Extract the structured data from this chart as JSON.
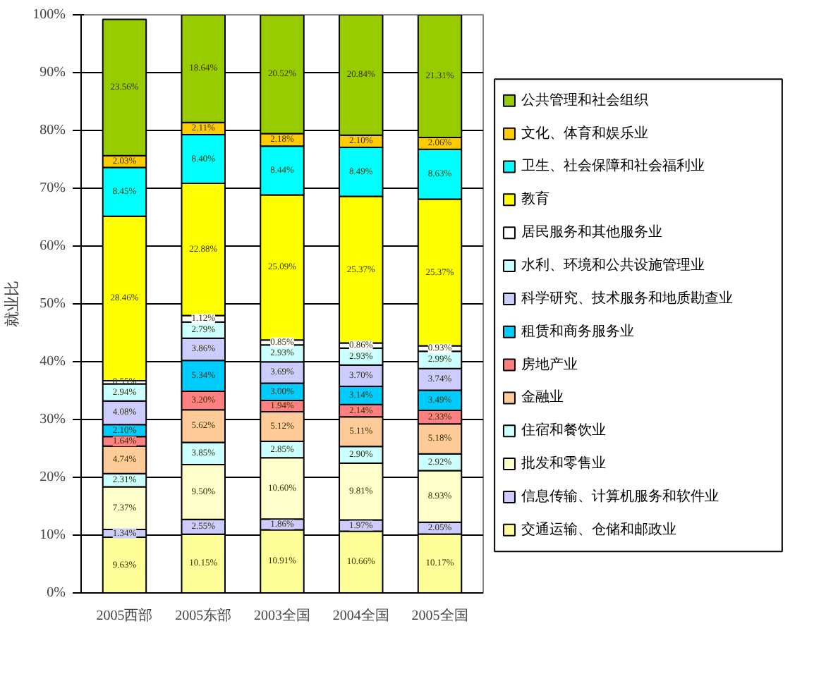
{
  "chart_data": {
    "type": "bar",
    "stacked": true,
    "ylabel": "就业比",
    "categories": [
      "2005西部",
      "2005东部",
      "2003全国",
      "2004全国",
      "2005全国"
    ],
    "ylim": [
      0,
      100
    ],
    "yticks": [
      {
        "value": 0,
        "label": "0%"
      },
      {
        "value": 10,
        "label": "10%"
      },
      {
        "value": 20,
        "label": "20%"
      },
      {
        "value": 30,
        "label": "30%"
      },
      {
        "value": 40,
        "label": "40%"
      },
      {
        "value": 50,
        "label": "50%"
      },
      {
        "value": 60,
        "label": "60%"
      },
      {
        "value": 70,
        "label": "70%"
      },
      {
        "value": 80,
        "label": "80%"
      },
      {
        "value": 90,
        "label": "90%"
      },
      {
        "value": 100,
        "label": "100%"
      }
    ],
    "grid": "y",
    "legend": "right",
    "series": [
      {
        "name": "交通运输、仓储和邮政业",
        "color": "#ffff99",
        "values": [
          9.63,
          10.15,
          10.91,
          10.66,
          10.17
        ],
        "value_labels": [
          "9.63%",
          "10.15%",
          "10.91%",
          "10.66%",
          "10.17%"
        ]
      },
      {
        "name": "信息传输、计算机服务和软件业",
        "color": "#ccccff",
        "values": [
          1.34,
          2.55,
          1.86,
          1.97,
          2.05
        ],
        "value_labels": [
          "1.34%",
          "2.55%",
          "1.86%",
          "1.97%",
          "2.05%"
        ]
      },
      {
        "name": "批发和零售业",
        "color": "#ffffcc",
        "values": [
          7.37,
          9.5,
          10.6,
          9.81,
          8.93
        ],
        "value_labels": [
          "7.37%",
          "9.50%",
          "10.60%",
          "9.81%",
          "8.93%"
        ]
      },
      {
        "name": "住宿和餐饮业",
        "color": "#ccffff",
        "values": [
          2.31,
          3.85,
          2.85,
          2.9,
          2.92
        ],
        "value_labels": [
          "2.31%",
          "3.85%",
          "2.85%",
          "2.90%",
          "2.92%"
        ]
      },
      {
        "name": "金融业",
        "color": "#ffcc99",
        "values": [
          4.74,
          5.62,
          5.12,
          5.11,
          5.18
        ],
        "value_labels": [
          "4.74%",
          "5.62%",
          "5.12%",
          "5.11%",
          "5.18%"
        ]
      },
      {
        "name": "房地产业",
        "color": "#ff8080",
        "values": [
          1.64,
          3.2,
          1.94,
          2.14,
          2.33
        ],
        "value_labels": [
          "1.64%",
          "3.20%",
          "1.94%",
          "2.14%",
          "2.33%"
        ]
      },
      {
        "name": "租赁和商务服务业",
        "color": "#00ccff",
        "values": [
          2.1,
          5.34,
          3.0,
          3.14,
          3.49
        ],
        "value_labels": [
          "2.10%",
          "5.34%",
          "3.00%",
          "3.14%",
          "3.49%"
        ]
      },
      {
        "name": "科学研究、技术服务和地质勘查业",
        "color": "#ccccff",
        "values": [
          4.08,
          3.86,
          3.69,
          3.7,
          3.74
        ],
        "value_labels": [
          "4.08%",
          "3.86%",
          "3.69%",
          "3.70%",
          "3.74%"
        ]
      },
      {
        "name": "水利、环境和公共设施管理业",
        "color": "#ccffff",
        "values": [
          2.94,
          2.79,
          2.93,
          2.93,
          2.99
        ],
        "value_labels": [
          "2.94%",
          "2.79%",
          "2.93%",
          "2.93%",
          "2.99%"
        ]
      },
      {
        "name": "居民服务和其他服务业",
        "color": "#ffffff",
        "values": [
          0.55,
          1.12,
          0.85,
          0.86,
          0.93
        ],
        "value_labels": [
          "0.55%",
          "1.12%",
          "0.85%",
          "0.86%",
          "0.93%"
        ]
      },
      {
        "name": "教育",
        "color": "#ffff00",
        "values": [
          28.46,
          22.88,
          25.09,
          25.37,
          25.37
        ],
        "value_labels": [
          "28.46%",
          "22.88%",
          "25.09%",
          "25.37%",
          "25.37%"
        ]
      },
      {
        "name": "卫生、社会保障和社会福利业",
        "color": "#00ffff",
        "values": [
          8.45,
          8.4,
          8.44,
          8.49,
          8.63
        ],
        "value_labels": [
          "8.45%",
          "8.40%",
          "8.44%",
          "8.49%",
          "8.63%"
        ]
      },
      {
        "name": "文化、体育和娱乐业",
        "color": "#ffcc00",
        "values": [
          2.03,
          2.11,
          2.18,
          2.1,
          2.06
        ],
        "value_labels": [
          "2.03%",
          "2.11%",
          "2.18%",
          "2.10%",
          "2.06%"
        ]
      },
      {
        "name": "公共管理和社会组织",
        "color": "#99cc00",
        "values": [
          23.56,
          18.64,
          20.52,
          20.84,
          21.31
        ],
        "value_labels": [
          "23.56%",
          "18.64%",
          "20.52%",
          "20.84%",
          "21.31%"
        ]
      }
    ]
  }
}
